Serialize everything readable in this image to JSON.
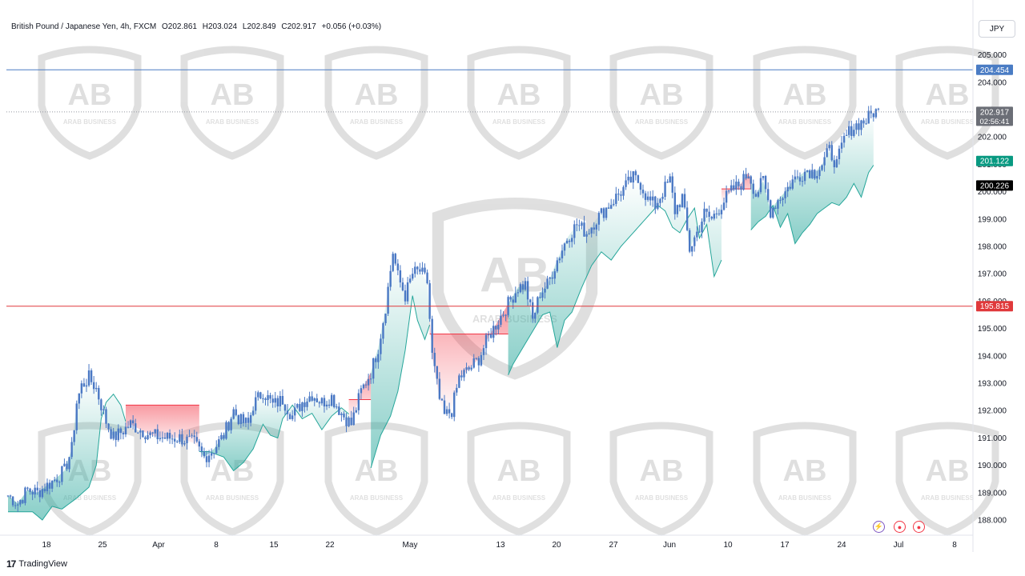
{
  "header": {
    "symbol": "British Pound / Japanese Yen, 4h, FXCM",
    "open": "O202.861",
    "high": "H203.024",
    "low": "L202.849",
    "close": "C202.917",
    "change": "+0.056 (+0.03%)"
  },
  "currency_button": "JPY",
  "footer": {
    "brand": "TradingView",
    "logo": "17"
  },
  "watermark": {
    "text": "ARAB BUSINESS",
    "icon": "ab-shield-logo"
  },
  "controls": [
    {
      "icon": "lightning-icon",
      "color": "#7e57c2"
    },
    {
      "icon": "record-icon",
      "color": "#f23645"
    },
    {
      "icon": "record-icon",
      "color": "#f23645"
    }
  ],
  "colors": {
    "candle": "#4a78c4",
    "support_line": "#4a7cc4",
    "resistance_line": "#e0393b",
    "bull_fill": "#26a69a",
    "bear_fill": "#f23645",
    "last_price_tag": "#6b6e76",
    "stop_tag": "#089981"
  },
  "chart_data": {
    "type": "candlestick",
    "title": "British Pound / Japanese Yen, 4h, FXCM",
    "ylim": [
      187.7,
      205.6
    ],
    "y_ticks": [
      "188.000",
      "189.000",
      "190.000",
      "191.000",
      "192.000",
      "193.000",
      "194.000",
      "195.000",
      "196.000",
      "197.000",
      "198.000",
      "199.000",
      "200.000",
      "201.000",
      "202.000",
      "203.000",
      "204.000",
      "205.000"
    ],
    "x_ticks": [
      "18",
      "25",
      "Apr",
      "8",
      "15",
      "22",
      "May",
      "13",
      "20",
      "27",
      "Jun",
      "10",
      "17",
      "24",
      "Jul",
      "8"
    ],
    "horizontal_lines": [
      {
        "value": 204.454,
        "label": "204.454",
        "color": "#4a7cc4"
      },
      {
        "value": 195.815,
        "label": "195.815",
        "color": "#e0393b"
      }
    ],
    "price_tags": [
      {
        "value": 202.917,
        "label": "202.917",
        "sub": "02:56:41",
        "color": "#6b6e76"
      },
      {
        "value": 201.122,
        "label": "201.122",
        "color": "#089981"
      },
      {
        "value": 200.226,
        "label": "200.226",
        "color": "#000000"
      }
    ],
    "price_path": [
      [
        0,
        188.9
      ],
      [
        4,
        188.6
      ],
      [
        8,
        189.1
      ],
      [
        12,
        189.0
      ],
      [
        18,
        189.4
      ],
      [
        23,
        189.8
      ],
      [
        26,
        190.6
      ],
      [
        28,
        192.3
      ],
      [
        30,
        192.9
      ],
      [
        33,
        193.2
      ],
      [
        36,
        192.8
      ],
      [
        40,
        191.6
      ],
      [
        43,
        191.0
      ],
      [
        46,
        191.2
      ],
      [
        50,
        191.5
      ],
      [
        54,
        191.3
      ],
      [
        58,
        191.1
      ],
      [
        64,
        191.0
      ],
      [
        70,
        191.0
      ],
      [
        76,
        190.8
      ],
      [
        80,
        190.3
      ],
      [
        84,
        190.6
      ],
      [
        88,
        191.1
      ],
      [
        92,
        192.0
      ],
      [
        95,
        191.6
      ],
      [
        98,
        191.5
      ],
      [
        100,
        192.2
      ],
      [
        104,
        192.7
      ],
      [
        108,
        192.2
      ],
      [
        112,
        192.4
      ],
      [
        116,
        191.8
      ],
      [
        120,
        192.3
      ],
      [
        124,
        192.6
      ],
      [
        128,
        192.3
      ],
      [
        132,
        192.5
      ],
      [
        136,
        191.9
      ],
      [
        140,
        191.5
      ],
      [
        144,
        192.7
      ],
      [
        148,
        193.4
      ],
      [
        151,
        194.3
      ],
      [
        154,
        195.8
      ],
      [
        157,
        197.8
      ],
      [
        159,
        196.9
      ],
      [
        162,
        196.2
      ],
      [
        165,
        197.0
      ],
      [
        168,
        197.1
      ],
      [
        171,
        196.7
      ],
      [
        173,
        194.0
      ],
      [
        176,
        192.4
      ],
      [
        178,
        191.8
      ],
      [
        181,
        192.0
      ],
      [
        184,
        193.2
      ],
      [
        188,
        193.5
      ],
      [
        192,
        193.9
      ],
      [
        196,
        194.7
      ],
      [
        200,
        195.3
      ],
      [
        204,
        195.9
      ],
      [
        208,
        196.5
      ],
      [
        211,
        196.6
      ],
      [
        214,
        195.3
      ],
      [
        217,
        196.3
      ],
      [
        220,
        196.6
      ],
      [
        224,
        197.5
      ],
      [
        228,
        198.3
      ],
      [
        232,
        198.8
      ],
      [
        236,
        198.5
      ],
      [
        240,
        199.0
      ],
      [
        244,
        199.4
      ],
      [
        248,
        199.8
      ],
      [
        252,
        200.2
      ],
      [
        255,
        200.5
      ],
      [
        258,
        200.3
      ],
      [
        261,
        199.7
      ],
      [
        264,
        199.5
      ],
      [
        267,
        200.0
      ],
      [
        270,
        200.4
      ],
      [
        272,
        199.3
      ],
      [
        275,
        199.8
      ],
      [
        278,
        197.9
      ],
      [
        281,
        198.5
      ],
      [
        284,
        199.2
      ],
      [
        287,
        199.0
      ],
      [
        290,
        199.4
      ],
      [
        293,
        199.8
      ],
      [
        296,
        200.1
      ],
      [
        299,
        200.3
      ],
      [
        302,
        200.7
      ],
      [
        305,
        199.9
      ],
      [
        308,
        200.4
      ],
      [
        311,
        199.3
      ],
      [
        314,
        199.7
      ],
      [
        317,
        200.0
      ],
      [
        320,
        200.4
      ],
      [
        323,
        200.6
      ],
      [
        326,
        200.8
      ],
      [
        329,
        200.7
      ],
      [
        332,
        201.0
      ],
      [
        335,
        201.5
      ],
      [
        338,
        201.0
      ],
      [
        341,
        201.9
      ],
      [
        344,
        202.3
      ],
      [
        347,
        202.5
      ],
      [
        350,
        202.6
      ],
      [
        353,
        202.92
      ]
    ],
    "n_candles": 356
  }
}
